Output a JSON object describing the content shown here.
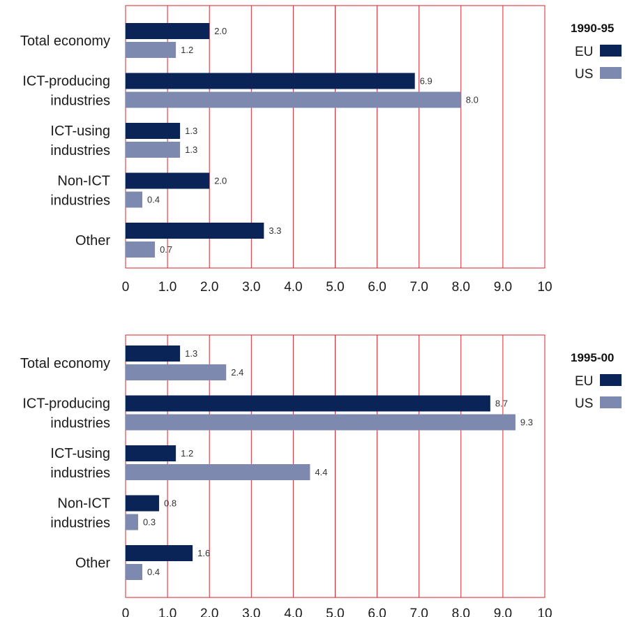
{
  "colors": {
    "EU": "#0a2458",
    "US": "#7d89ae",
    "grid": "#d9232d"
  },
  "chart_data": [
    {
      "type": "bar",
      "orientation": "horizontal",
      "legend_title": "1990-95",
      "legend_placement": "right",
      "categories": [
        [
          "Total economy"
        ],
        [
          "ICT-producing",
          "industries"
        ],
        [
          "ICT-using",
          "industries"
        ],
        [
          "Non-ICT",
          "industries"
        ],
        [
          "Other"
        ]
      ],
      "series": [
        {
          "name": "EU",
          "values": [
            2.0,
            6.9,
            1.3,
            2.0,
            3.3
          ],
          "labels": [
            "2.0",
            "6.9",
            "1.3",
            "2.0",
            "3.3"
          ]
        },
        {
          "name": "US",
          "values": [
            1.2,
            8.0,
            1.3,
            0.4,
            0.7
          ],
          "labels": [
            "1.2",
            "8.0",
            "1.3",
            "0.4",
            "0.7"
          ]
        }
      ],
      "xlim": [
        0,
        10
      ],
      "xticks": [
        "0",
        "1.0",
        "2.0",
        "3.0",
        "4.0",
        "5.0",
        "6.0",
        "7.0",
        "8.0",
        "9.0",
        "10"
      ],
      "grid": true
    },
    {
      "type": "bar",
      "orientation": "horizontal",
      "legend_title": "1995-00",
      "legend_placement": "right",
      "categories": [
        [
          "Total economy"
        ],
        [
          "ICT-producing",
          "industries"
        ],
        [
          "ICT-using",
          "industries"
        ],
        [
          "Non-ICT",
          "industries"
        ],
        [
          "Other"
        ]
      ],
      "series": [
        {
          "name": "EU",
          "values": [
            1.3,
            8.7,
            1.2,
            0.8,
            1.6
          ],
          "labels": [
            "1.3",
            "8.7",
            "1.2",
            "0.8",
            "1.6"
          ]
        },
        {
          "name": "US",
          "values": [
            2.4,
            9.3,
            4.4,
            0.3,
            0.4
          ],
          "labels": [
            "2.4",
            "9.3",
            "4.4",
            "0.3",
            "0.4"
          ]
        }
      ],
      "xlim": [
        0,
        10
      ],
      "xticks": [
        "0",
        "1.0",
        "2.0",
        "3.0",
        "4.0",
        "5.0",
        "6.0",
        "7.0",
        "8.0",
        "9.0",
        "10"
      ],
      "grid": true
    }
  ]
}
